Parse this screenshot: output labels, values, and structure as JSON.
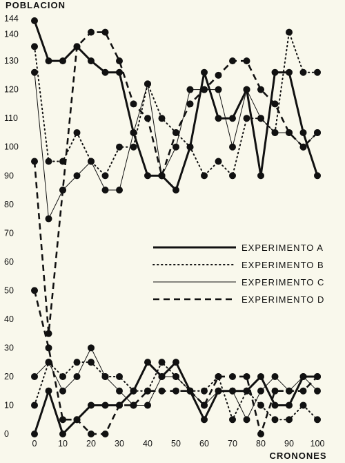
{
  "chart_data": {
    "type": "line",
    "ylabel": "POBLACION",
    "xlabel": "CRONONES",
    "xlim": [
      0,
      100
    ],
    "ylim": [
      0,
      144
    ],
    "y_ticks": [
      "0",
      "10",
      "20",
      "30",
      "40",
      "50",
      "60",
      "70",
      "80",
      "90",
      "100",
      "110",
      "120",
      "130",
      "140",
      "144"
    ],
    "x_ticks": [
      "0",
      "10",
      "20",
      "30",
      "40",
      "50",
      "60",
      "70",
      "80",
      "90",
      "100"
    ],
    "grid": false,
    "legend_position": "middle-right",
    "series": [
      {
        "name": "EXPERIMENTO A",
        "style": "solid-thick",
        "color": "#111111",
        "lines": [
          {
            "x": [
              0,
              5,
              10,
              15,
              20,
              25,
              30,
              35,
              40,
              45,
              50,
              55,
              60,
              65,
              70,
              75,
              80,
              85,
              90,
              95,
              100
            ],
            "y": [
              144,
              130,
              130,
              135,
              130,
              126,
              126,
              105,
              90,
              90,
              85,
              100,
              126,
              110,
              110,
              120,
              90,
              126,
              126,
              105,
              90
            ]
          },
          {
            "x": [
              0,
              5,
              10,
              15,
              20,
              25,
              30,
              35,
              40,
              45,
              50,
              55,
              60,
              65,
              70,
              75,
              80,
              85,
              90,
              95,
              100
            ],
            "y": [
              0,
              15,
              0,
              5,
              10,
              10,
              10,
              15,
              25,
              20,
              25,
              15,
              5,
              15,
              15,
              15,
              20,
              10,
              10,
              20,
              20
            ]
          }
        ]
      },
      {
        "name": "EXPERIMENTO B",
        "style": "dotted",
        "color": "#111111",
        "lines": [
          {
            "x": [
              0,
              5,
              10,
              15,
              20,
              25,
              30,
              35,
              40,
              45,
              50,
              55,
              60,
              65,
              70,
              75,
              80,
              85,
              90,
              95,
              100
            ],
            "y": [
              135,
              95,
              95,
              105,
              95,
              90,
              100,
              100,
              122,
              110,
              105,
              100,
              90,
              95,
              90,
              110,
              110,
              105,
              140,
              126,
              126
            ]
          },
          {
            "x": [
              0,
              5,
              10,
              15,
              20,
              25,
              30,
              35,
              40,
              45,
              50,
              55,
              60,
              65,
              70,
              75,
              80,
              85,
              90,
              95,
              100
            ],
            "y": [
              10,
              25,
              20,
              25,
              25,
              20,
              20,
              15,
              15,
              25,
              20,
              15,
              15,
              20,
              5,
              15,
              10,
              5,
              5,
              10,
              5
            ]
          }
        ]
      },
      {
        "name": "EXPERIMENTO C",
        "style": "thin",
        "color": "#111111",
        "lines": [
          {
            "x": [
              0,
              5,
              10,
              15,
              20,
              25,
              30,
              35,
              40,
              45,
              50,
              55,
              60,
              65,
              70,
              75,
              80,
              85,
              90,
              95,
              100
            ],
            "y": [
              126,
              75,
              85,
              90,
              95,
              85,
              85,
              105,
              122,
              90,
              100,
              120,
              120,
              120,
              100,
              120,
              110,
              105,
              105,
              100,
              105
            ]
          },
          {
            "x": [
              0,
              5,
              10,
              15,
              20,
              25,
              30,
              35,
              40,
              45,
              50,
              55,
              60,
              65,
              70,
              75,
              80,
              85,
              90,
              95,
              100
            ],
            "y": [
              20,
              25,
              15,
              20,
              30,
              20,
              15,
              10,
              10,
              20,
              20,
              15,
              10,
              15,
              15,
              5,
              15,
              20,
              15,
              20,
              15
            ]
          }
        ]
      },
      {
        "name": "EXPERIMENTO D",
        "style": "dashed",
        "color": "#111111",
        "lines": [
          {
            "x": [
              0,
              5,
              10,
              15,
              20,
              25,
              30,
              35,
              40,
              45,
              50,
              55,
              60,
              65,
              70,
              75,
              80,
              85,
              90,
              95,
              100
            ],
            "y": [
              95,
              35,
              85,
              135,
              140,
              140,
              130,
              115,
              110,
              90,
              105,
              115,
              120,
              125,
              130,
              130,
              120,
              115,
              105,
              100,
              105
            ]
          },
          {
            "x": [
              0,
              5,
              10,
              15,
              20,
              25,
              30,
              35,
              40,
              45,
              50,
              55,
              60,
              65,
              70,
              75,
              80,
              85,
              90,
              95,
              100
            ],
            "y": [
              50,
              30,
              5,
              5,
              0,
              0,
              10,
              10,
              15,
              15,
              15,
              15,
              10,
              20,
              20,
              20,
              0,
              15,
              15,
              15,
              20
            ]
          }
        ]
      }
    ]
  }
}
